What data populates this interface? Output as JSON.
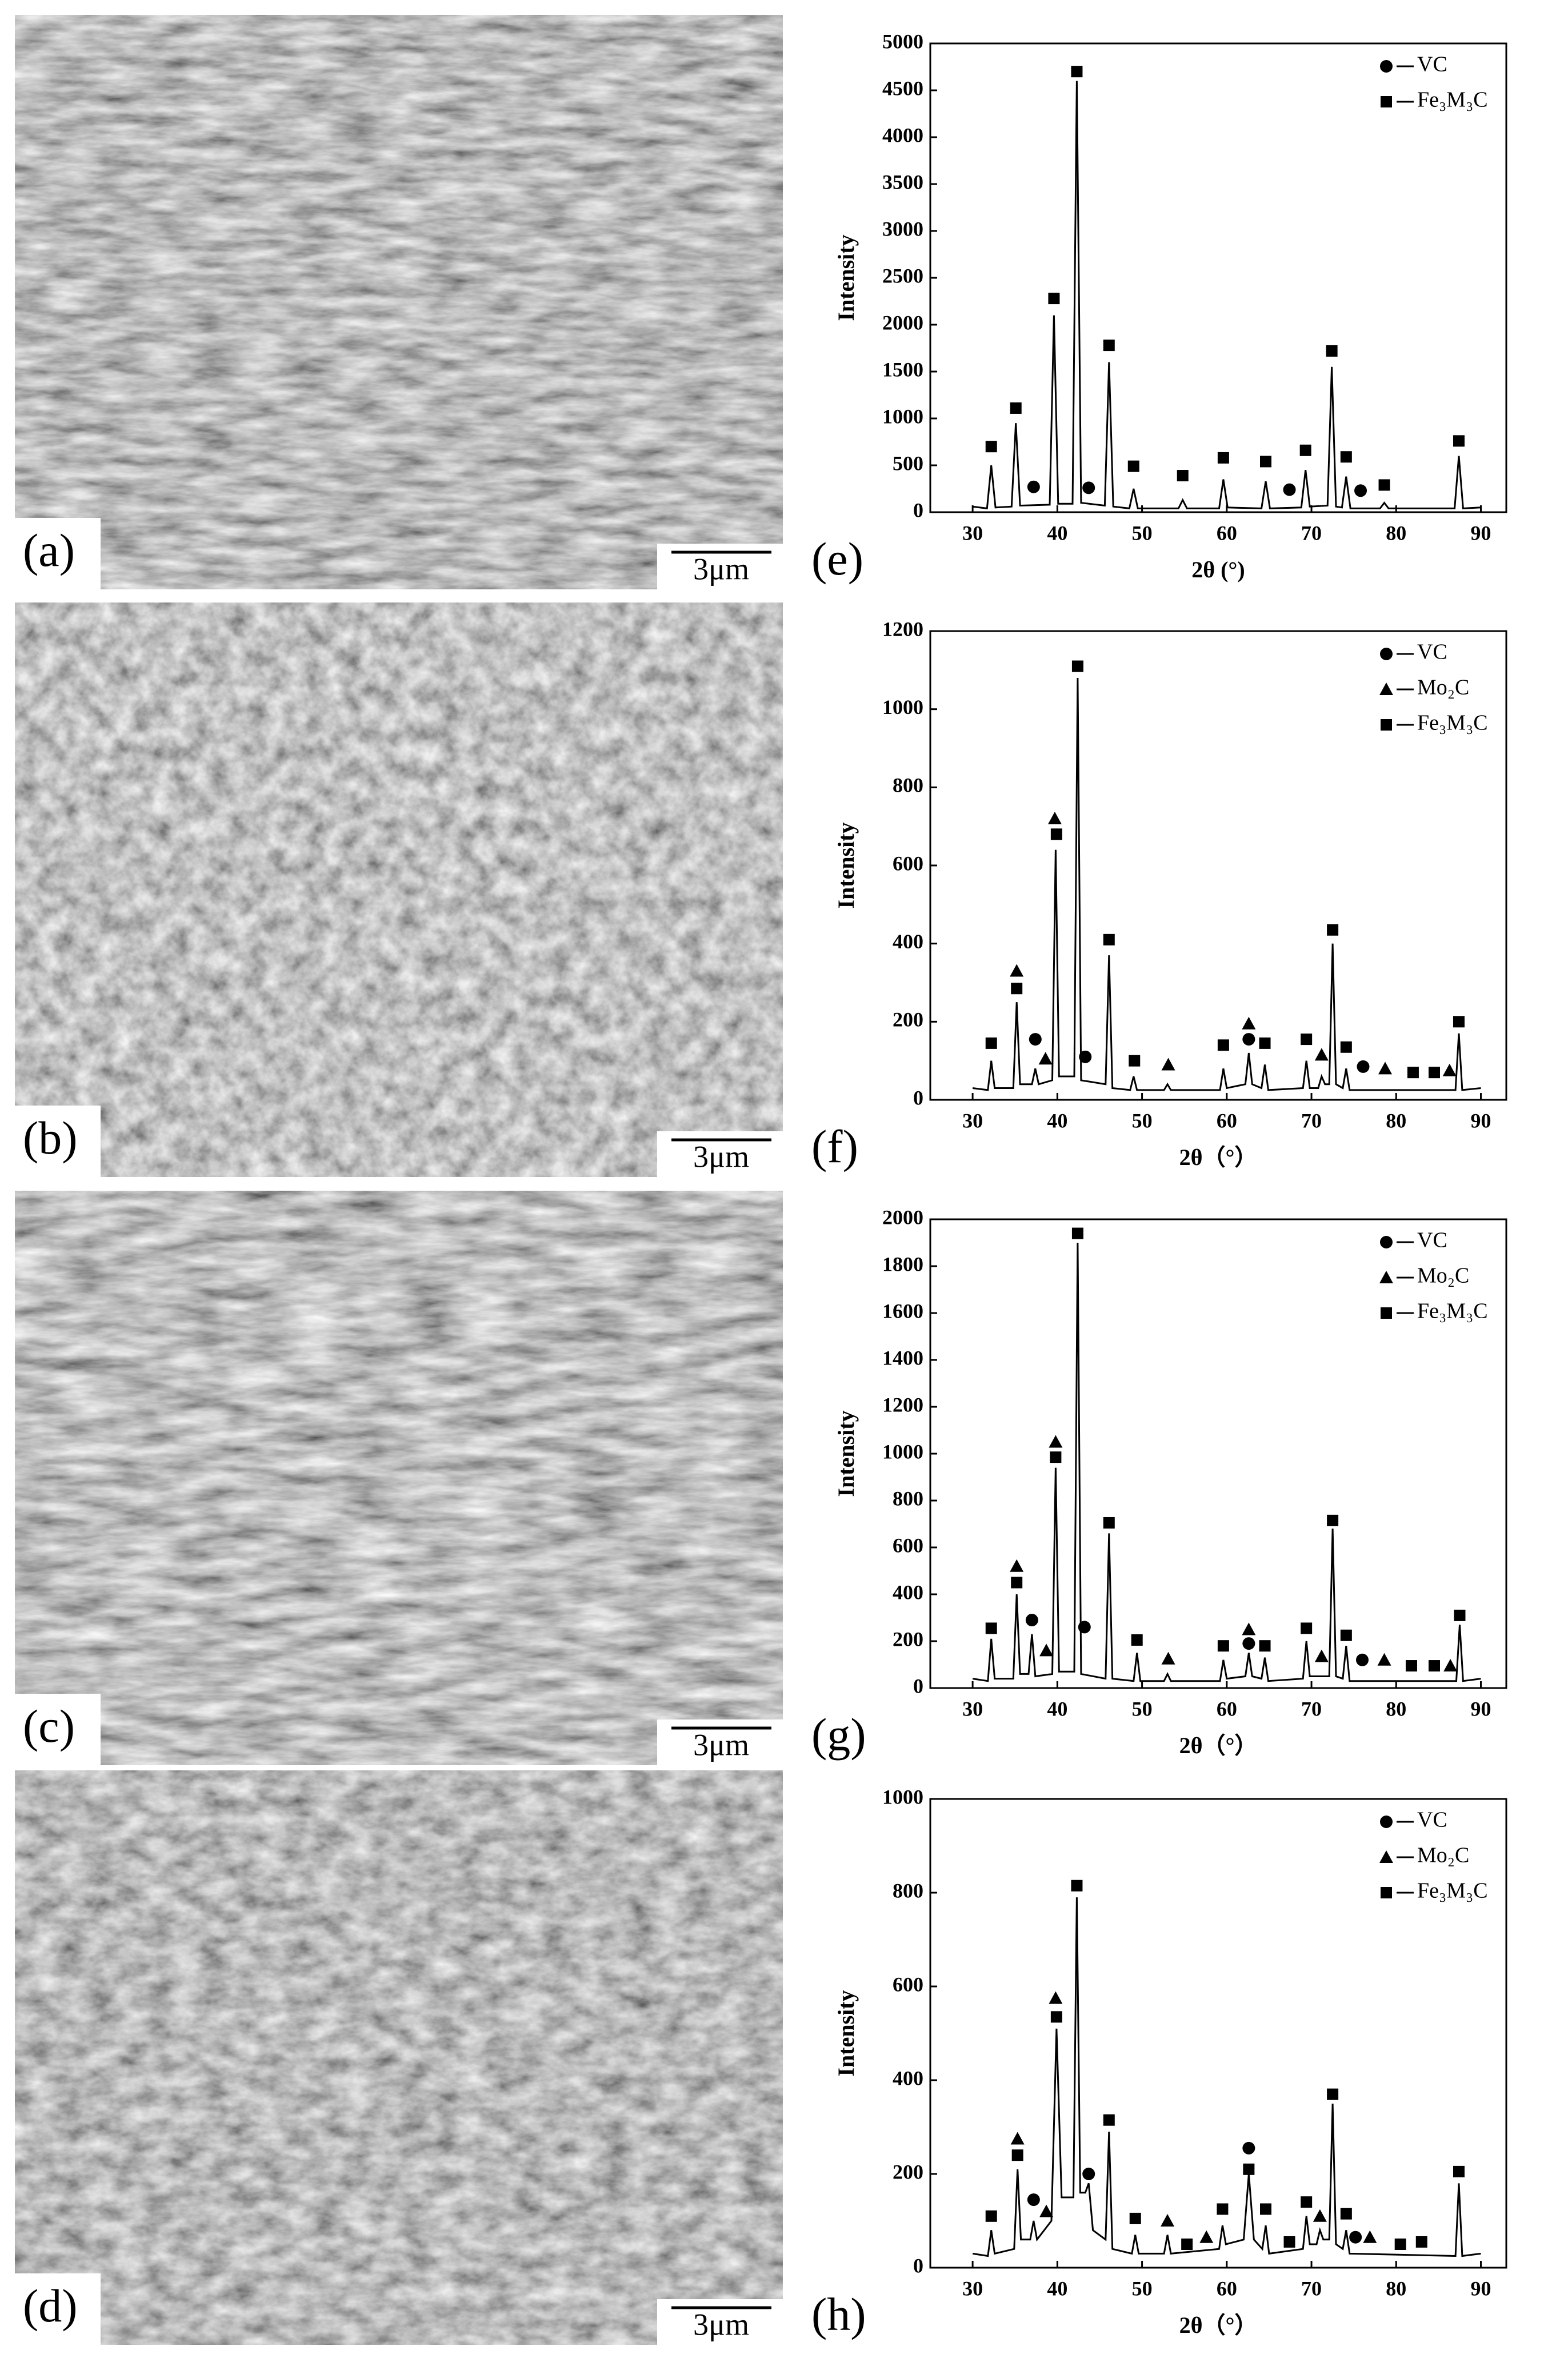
{
  "panels": [
    {
      "label": "(a)",
      "scale_bar": "3μm"
    },
    {
      "label": "(b)",
      "scale_bar": "3μm"
    },
    {
      "label": "(c)",
      "scale_bar": "3μm"
    },
    {
      "label": "(d)",
      "scale_bar": "3μm"
    }
  ],
  "chart_data": [
    {
      "type": "line",
      "panel_label": "(e)",
      "y_label": "Intensity",
      "x_label": "2θ (°)",
      "legend": "upper right",
      "xlim": [
        25,
        93
      ],
      "xticks": [
        30,
        40,
        50,
        60,
        70,
        80,
        90
      ],
      "ylim": [
        0,
        5000
      ],
      "yticks": [
        0,
        500,
        1000,
        1500,
        2000,
        2500,
        3000,
        3500,
        4000,
        4500,
        5000
      ],
      "trace": {
        "color": "#000000",
        "x": [
          30,
          31.7,
          32.2,
          32.7,
          34.6,
          35.1,
          35.6,
          39.1,
          39.6,
          40.1,
          41.8,
          42.3,
          42.8,
          45.6,
          46.1,
          46.6,
          48.5,
          49,
          49.5,
          54.3,
          54.8,
          55.3,
          59.1,
          59.6,
          60.1,
          64.1,
          64.6,
          65.1,
          68.8,
          69.3,
          69.8,
          71.9,
          72.4,
          72.9,
          73.6,
          74.1,
          74.6,
          78.1,
          78.6,
          79.1,
          86.9,
          87.4,
          87.9,
          90
        ],
        "values": [
          60,
          40,
          500,
          50,
          60,
          950,
          70,
          80,
          2100,
          90,
          90,
          4600,
          100,
          70,
          1600,
          60,
          40,
          250,
          40,
          40,
          130,
          40,
          40,
          350,
          50,
          40,
          330,
          40,
          50,
          450,
          60,
          70,
          1550,
          60,
          50,
          380,
          40,
          40,
          100,
          40,
          40,
          600,
          40,
          50
        ]
      },
      "series": [
        {
          "name": "VC",
          "marker": "circle",
          "color": "#000000",
          "x": [
            37.2,
            43.7,
            67.4,
            75.8
          ],
          "values": [
            270,
            260,
            240,
            230
          ]
        },
        {
          "name": "Fe₃M₃C",
          "marker": "square",
          "color": "#000000",
          "x": [
            32.2,
            35.1,
            39.6,
            42.3,
            46.1,
            49,
            54.8,
            59.6,
            64.6,
            69.3,
            72.4,
            74.1,
            78.6,
            87.4
          ],
          "values": [
            700,
            1110,
            2280,
            4700,
            1780,
            490,
            390,
            580,
            540,
            660,
            1720,
            590,
            290,
            760
          ]
        }
      ]
    },
    {
      "type": "line",
      "panel_label": "(f)",
      "y_label": "Intensity",
      "x_label": "2θ（°）",
      "legend": "upper right",
      "xlim": [
        25,
        93
      ],
      "xticks": [
        30,
        40,
        50,
        60,
        70,
        80,
        90
      ],
      "ylim": [
        0,
        1200
      ],
      "yticks": [
        0,
        200,
        400,
        600,
        800,
        1000,
        1200
      ],
      "trace": {
        "color": "#000000",
        "x": [
          30,
          31.8,
          32.2,
          32.6,
          34.8,
          35.2,
          35.6,
          37,
          37.4,
          37.8,
          39.4,
          39.8,
          40.2,
          42,
          42.4,
          42.8,
          45.7,
          46.1,
          46.5,
          48.6,
          49,
          49.4,
          52.6,
          53,
          53.4,
          59.2,
          59.6,
          60,
          62.2,
          62.6,
          63,
          64.1,
          64.5,
          64.9,
          69,
          69.4,
          69.8,
          70.8,
          71.2,
          71.6,
          72.1,
          72.5,
          72.9,
          73.7,
          74.1,
          74.5,
          87,
          87.4,
          87.8,
          90
        ],
        "values": [
          30,
          25,
          100,
          30,
          30,
          250,
          40,
          40,
          80,
          40,
          50,
          640,
          60,
          60,
          1080,
          50,
          40,
          370,
          30,
          25,
          60,
          25,
          25,
          40,
          25,
          25,
          80,
          30,
          40,
          120,
          40,
          30,
          90,
          25,
          30,
          100,
          30,
          30,
          60,
          40,
          40,
          400,
          40,
          30,
          80,
          25,
          25,
          170,
          25,
          30
        ]
      },
      "series": [
        {
          "name": "VC",
          "marker": "circle",
          "color": "#000000",
          "x": [
            37.4,
            43.3,
            62.6,
            76.1
          ],
          "values": [
            155,
            110,
            155,
            85
          ]
        },
        {
          "name": "Mo₂C",
          "marker": "triangle",
          "color": "#000000",
          "x": [
            35.2,
            38.6,
            39.7,
            53.1,
            62.6,
            71.2,
            78.7,
            86.3
          ],
          "values": [
            330,
            105,
            720,
            90,
            195,
            115,
            80,
            75
          ]
        },
        {
          "name": "Fe₃M₃C",
          "marker": "square",
          "color": "#000000",
          "x": [
            32.2,
            35.2,
            39.9,
            42.4,
            46.1,
            49.1,
            59.6,
            64.5,
            69.4,
            72.5,
            74.1,
            82,
            84.5,
            87.4
          ],
          "values": [
            145,
            285,
            680,
            1110,
            410,
            100,
            140,
            145,
            155,
            435,
            135,
            70,
            70,
            200
          ]
        }
      ]
    },
    {
      "type": "line",
      "panel_label": "(g)",
      "y_label": "Intensity",
      "x_label": "2θ（°）",
      "legend": "upper right",
      "xlim": [
        25,
        93
      ],
      "xticks": [
        30,
        40,
        50,
        60,
        70,
        80,
        90
      ],
      "ylim": [
        0,
        2000
      ],
      "yticks": [
        0,
        200,
        400,
        600,
        800,
        1000,
        1200,
        1400,
        1600,
        1800,
        2000
      ],
      "trace": {
        "color": "#000000",
        "x": [
          30,
          31.8,
          32.2,
          32.6,
          34.8,
          35.2,
          35.6,
          36.6,
          37,
          37.4,
          39.4,
          39.8,
          40.2,
          42,
          42.4,
          42.8,
          45.7,
          46.1,
          46.5,
          49,
          49.4,
          49.8,
          52.6,
          53,
          53.4,
          59.2,
          59.6,
          60,
          62.2,
          62.6,
          63,
          64.1,
          64.5,
          64.9,
          69,
          69.4,
          69.8,
          72.1,
          72.5,
          72.9,
          73.7,
          74.1,
          74.5,
          87.1,
          87.5,
          87.9,
          90
        ],
        "values": [
          40,
          30,
          210,
          40,
          40,
          400,
          60,
          60,
          230,
          50,
          60,
          940,
          70,
          70,
          1900,
          60,
          40,
          660,
          40,
          30,
          150,
          30,
          30,
          60,
          30,
          30,
          120,
          40,
          50,
          150,
          50,
          40,
          130,
          30,
          40,
          200,
          50,
          50,
          680,
          50,
          40,
          180,
          30,
          30,
          270,
          30,
          40
        ]
      },
      "series": [
        {
          "name": "VC",
          "marker": "circle",
          "color": "#000000",
          "x": [
            37,
            43.2,
            62.6,
            76
          ],
          "values": [
            290,
            260,
            190,
            120
          ]
        },
        {
          "name": "Mo₂C",
          "marker": "triangle",
          "color": "#000000",
          "x": [
            35.2,
            38.7,
            39.8,
            53.1,
            62.6,
            71.2,
            78.6,
            86.4
          ],
          "values": [
            520,
            160,
            1050,
            125,
            250,
            135,
            120,
            95
          ]
        },
        {
          "name": "Fe₃M₃C",
          "marker": "square",
          "color": "#000000",
          "x": [
            32.2,
            35.2,
            39.8,
            42.4,
            46.1,
            49.4,
            59.6,
            64.5,
            69.4,
            72.5,
            74.1,
            81.8,
            84.5,
            87.5
          ],
          "values": [
            255,
            450,
            985,
            1940,
            705,
            205,
            180,
            180,
            255,
            715,
            225,
            95,
            95,
            310
          ]
        }
      ]
    },
    {
      "type": "line",
      "panel_label": "(h)",
      "y_label": "Intensity",
      "x_label": "2θ（°）",
      "legend": "upper right",
      "xlim": [
        25,
        93
      ],
      "xticks": [
        30,
        40,
        50,
        60,
        70,
        80,
        90
      ],
      "ylim": [
        0,
        1000
      ],
      "yticks": [
        0,
        200,
        400,
        600,
        800,
        1000
      ],
      "trace": {
        "color": "#000000",
        "x": [
          30,
          31.8,
          32.2,
          32.6,
          34.9,
          35.3,
          35.7,
          36.8,
          37.2,
          37.6,
          39.3,
          39.9,
          40.5,
          41.9,
          42.3,
          42.7,
          43.3,
          43.7,
          44.2,
          45.7,
          46.1,
          46.5,
          48.8,
          49.2,
          49.6,
          52.6,
          53,
          53.4,
          59.1,
          59.5,
          59.9,
          62,
          62.6,
          63.2,
          64.2,
          64.6,
          65,
          69,
          69.4,
          69.8,
          70.6,
          71,
          71.4,
          72.1,
          72.5,
          72.9,
          73.7,
          74.1,
          74.5,
          87,
          87.4,
          87.8,
          90
        ],
        "values": [
          30,
          25,
          80,
          30,
          40,
          210,
          60,
          60,
          100,
          60,
          100,
          510,
          150,
          150,
          790,
          160,
          160,
          180,
          80,
          60,
          290,
          40,
          30,
          70,
          30,
          30,
          70,
          30,
          40,
          90,
          50,
          60,
          200,
          60,
          40,
          90,
          30,
          40,
          110,
          50,
          50,
          80,
          60,
          60,
          350,
          50,
          40,
          80,
          30,
          25,
          180,
          25,
          30
        ]
      },
      "series": [
        {
          "name": "VC",
          "marker": "circle",
          "color": "#000000",
          "x": [
            37.2,
            43.7,
            62.6,
            75.2
          ],
          "values": [
            145,
            200,
            255,
            65
          ]
        },
        {
          "name": "Mo₂C",
          "marker": "triangle",
          "color": "#000000",
          "x": [
            35.3,
            38.7,
            39.8,
            53,
            57.6,
            71,
            76.9
          ],
          "values": [
            275,
            120,
            575,
            100,
            65,
            110,
            65
          ]
        },
        {
          "name": "Fe₃M₃C",
          "marker": "square",
          "color": "#000000",
          "x": [
            32.2,
            35.3,
            39.9,
            42.3,
            46.1,
            49.2,
            55.3,
            59.5,
            62.6,
            64.6,
            67.4,
            69.4,
            72.5,
            74.1,
            80.5,
            83,
            87.4
          ],
          "values": [
            110,
            240,
            535,
            815,
            315,
            105,
            50,
            125,
            210,
            125,
            55,
            140,
            370,
            115,
            50,
            55,
            205
          ]
        }
      ]
    }
  ]
}
